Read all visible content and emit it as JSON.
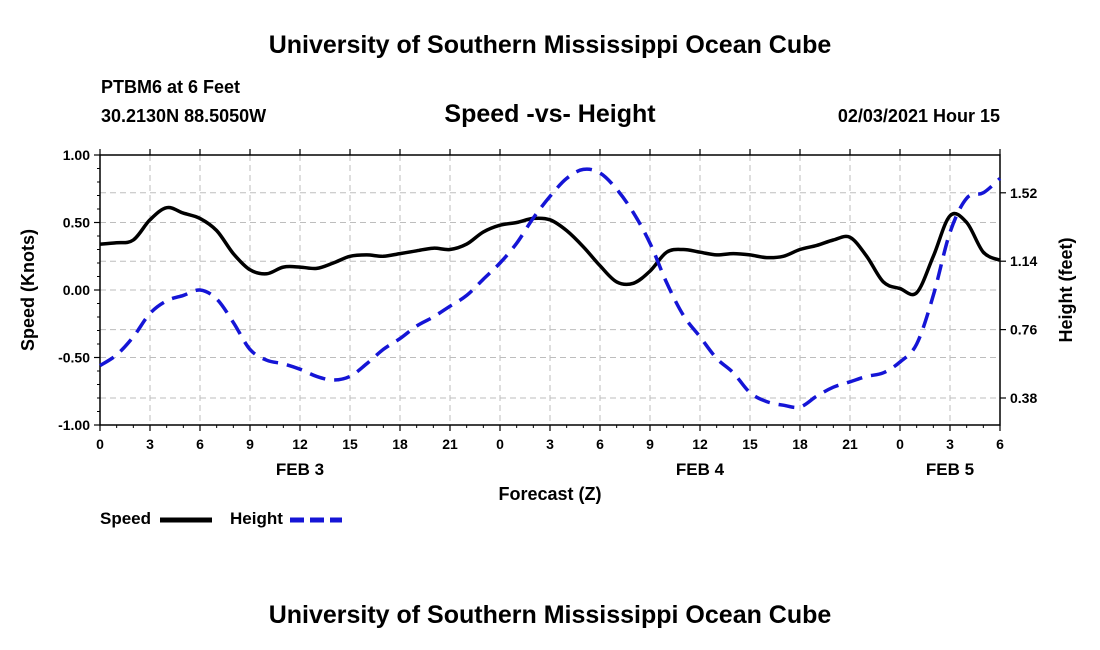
{
  "header": {
    "title": "University of Southern Mississippi Ocean Cube",
    "station": "PTBM6 at 6 Feet",
    "coords": "30.2130N 88.5050W",
    "datetime": "02/03/2021 Hour 15"
  },
  "footer": {
    "title": "University of Southern Mississippi Ocean Cube"
  },
  "colors": {
    "speed": "#000000",
    "height": "#1515d6",
    "grid": "#bdbdbd"
  },
  "chart_data": {
    "type": "line",
    "title": "Speed -vs- Height",
    "xlabel": "Forecast (Z)",
    "ylabel": "Speed (Knots)",
    "ylabel_right": "Height (feet)",
    "xlim": [
      0,
      54
    ],
    "ylim": [
      -1.0,
      1.0
    ],
    "ylim_right": [
      0.23,
      1.73
    ],
    "x_ticks": [
      0,
      3,
      6,
      9,
      12,
      15,
      18,
      21,
      24,
      27,
      30,
      33,
      36,
      39,
      42,
      45,
      48,
      51,
      54
    ],
    "x_tick_labels": [
      "0",
      "3",
      "6",
      "9",
      "12",
      "15",
      "18",
      "21",
      "0",
      "3",
      "6",
      "9",
      "12",
      "15",
      "18",
      "21",
      "0",
      "3",
      "6"
    ],
    "y_ticks": [
      -1.0,
      -0.5,
      0.0,
      0.5,
      1.0
    ],
    "y_tick_labels": [
      "-1.00",
      "-0.50",
      "0.00",
      "0.50",
      "1.00"
    ],
    "y_ticks_right": [
      0.38,
      0.76,
      1.14,
      1.52
    ],
    "y_tick_labels_right": [
      "0.38",
      "0.76",
      "1.14",
      "1.52"
    ],
    "day_labels": [
      {
        "x": 12,
        "label": "FEB 3"
      },
      {
        "x": 36,
        "label": "FEB 4"
      },
      {
        "x": 51,
        "label": "FEB 5"
      }
    ],
    "grid": true,
    "legend": "bottom-left",
    "series": [
      {
        "name": "Speed",
        "axis": "left",
        "style": "solid",
        "x": [
          0,
          1,
          2,
          3,
          4,
          5,
          6,
          7,
          8,
          9,
          10,
          11,
          12,
          13,
          14,
          15,
          16,
          17,
          18,
          19,
          20,
          21,
          22,
          23,
          24,
          25,
          26,
          27,
          28,
          29,
          30,
          31,
          32,
          33,
          34,
          35,
          36,
          37,
          38,
          39,
          40,
          41,
          42,
          43,
          44,
          45,
          46,
          47,
          48,
          49,
          50,
          51,
          52,
          53,
          54
        ],
        "values": [
          0.34,
          0.35,
          0.37,
          0.52,
          0.61,
          0.57,
          0.53,
          0.44,
          0.27,
          0.15,
          0.12,
          0.17,
          0.17,
          0.16,
          0.2,
          0.25,
          0.26,
          0.25,
          0.27,
          0.29,
          0.31,
          0.3,
          0.34,
          0.43,
          0.48,
          0.5,
          0.53,
          0.52,
          0.44,
          0.32,
          0.18,
          0.06,
          0.05,
          0.14,
          0.28,
          0.3,
          0.28,
          0.26,
          0.27,
          0.26,
          0.24,
          0.25,
          0.3,
          0.33,
          0.37,
          0.39,
          0.25,
          0.06,
          0.01,
          -0.02,
          0.25,
          0.55,
          0.5,
          0.28,
          0.22
        ]
      },
      {
        "name": "Height",
        "axis": "right",
        "style": "dashed",
        "x": [
          0,
          1,
          2,
          3,
          4,
          5,
          6,
          7,
          8,
          9,
          10,
          11,
          12,
          13,
          14,
          15,
          16,
          17,
          18,
          19,
          20,
          21,
          22,
          23,
          24,
          25,
          26,
          27,
          28,
          29,
          30,
          31,
          32,
          33,
          34,
          35,
          36,
          37,
          38,
          39,
          40,
          41,
          42,
          43,
          44,
          45,
          46,
          47,
          48,
          49,
          50,
          51,
          52,
          53,
          54
        ],
        "values": [
          0.56,
          0.62,
          0.72,
          0.85,
          0.92,
          0.95,
          0.98,
          0.93,
          0.8,
          0.65,
          0.59,
          0.57,
          0.54,
          0.5,
          0.48,
          0.5,
          0.57,
          0.65,
          0.71,
          0.78,
          0.83,
          0.89,
          0.95,
          1.04,
          1.13,
          1.24,
          1.38,
          1.5,
          1.6,
          1.65,
          1.63,
          1.54,
          1.41,
          1.24,
          1.02,
          0.84,
          0.72,
          0.6,
          0.52,
          0.41,
          0.36,
          0.34,
          0.33,
          0.39,
          0.44,
          0.47,
          0.5,
          0.52,
          0.58,
          0.68,
          0.95,
          1.3,
          1.49,
          1.52,
          1.6
        ]
      }
    ]
  }
}
